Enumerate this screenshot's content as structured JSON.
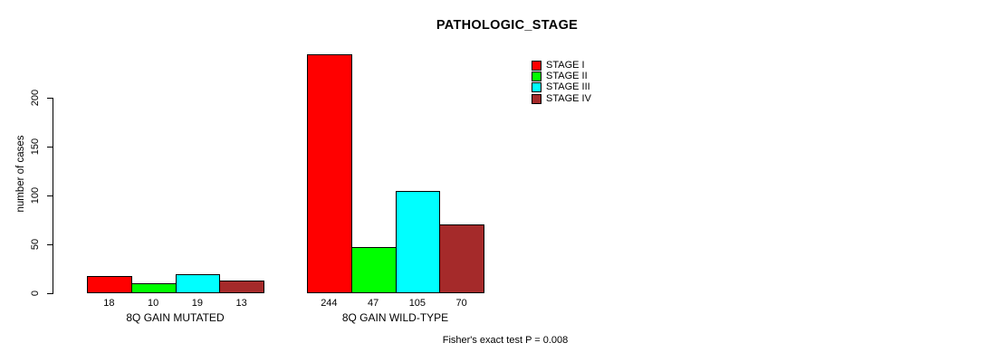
{
  "chart_data": {
    "type": "bar",
    "title": "PATHOLOGIC_STAGE",
    "ylabel": "number of cases",
    "xlabel": "",
    "footer": "Fisher's exact test P = 0.008",
    "categories": [
      "8Q GAIN MUTATED",
      "8Q GAIN WILD-TYPE"
    ],
    "series": [
      {
        "name": "STAGE I",
        "color": "#ff0000",
        "values": [
          18,
          244
        ]
      },
      {
        "name": "STAGE II",
        "color": "#00ff00",
        "values": [
          10,
          47
        ]
      },
      {
        "name": "STAGE III",
        "color": "#00ffff",
        "values": [
          19,
          105
        ]
      },
      {
        "name": "STAGE IV",
        "color": "#a52a2a",
        "values": [
          13,
          70
        ]
      }
    ],
    "bar_value_labels": {
      "8Q GAIN MUTATED": [
        18,
        10,
        19,
        13
      ],
      "8Q GAIN WILD-TYPE": [
        244,
        47,
        105,
        70
      ]
    },
    "yticks": [
      0,
      50,
      100,
      150,
      200
    ],
    "ylim": [
      0,
      250
    ],
    "grid": false,
    "legend_position": "top-right"
  }
}
